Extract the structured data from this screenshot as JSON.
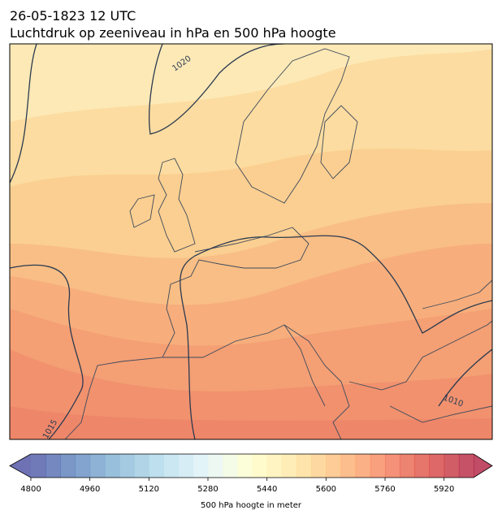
{
  "title": "26-05-1823 12 UTC",
  "subtitle": "Luchtdruk op zeeniveau in hPa en 500 hPa hoogte",
  "contour_labels": [
    "1020",
    "1010",
    "1015"
  ],
  "colorbar": {
    "label": "500 hPa hoogte in meter",
    "lim": [
      4800,
      6000
    ],
    "ticks": [
      4800,
      4960,
      5120,
      5280,
      5440,
      5600,
      5760,
      5920
    ]
  }
}
